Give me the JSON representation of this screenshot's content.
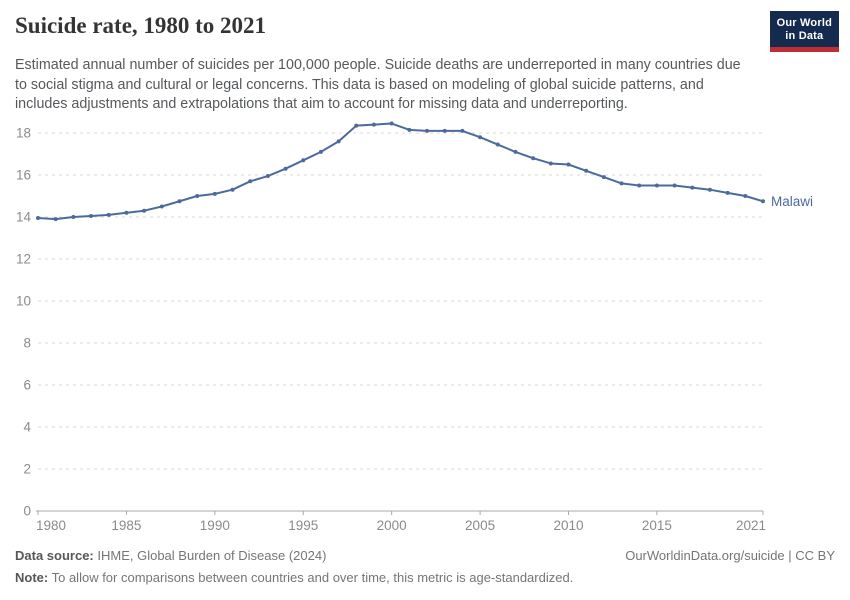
{
  "header": {
    "title": "Suicide rate, 1980 to 2021",
    "subtitle": "Estimated annual number of suicides per 100,000 people. Suicide deaths are underreported in many countries due to social stigma and cultural or legal concerns. This data is based on modeling of global suicide patterns, and includes adjustments and extrapolations that aim to account for missing data and underreporting.",
    "logo": {
      "line1": "Our World",
      "line2": "in Data"
    }
  },
  "chart_data": {
    "type": "line",
    "title": "Suicide rate, 1980 to 2021",
    "entity": "Malawi",
    "x": [
      1980,
      1981,
      1982,
      1983,
      1984,
      1985,
      1986,
      1987,
      1988,
      1989,
      1990,
      1991,
      1992,
      1993,
      1994,
      1995,
      1996,
      1997,
      1998,
      1999,
      2000,
      2001,
      2002,
      2003,
      2004,
      2005,
      2006,
      2007,
      2008,
      2009,
      2010,
      2011,
      2012,
      2013,
      2014,
      2015,
      2016,
      2017,
      2018,
      2019,
      2020,
      2021
    ],
    "series": [
      {
        "name": "Malawi",
        "values": [
          13.95,
          13.9,
          14.0,
          14.05,
          14.1,
          14.2,
          14.3,
          14.5,
          14.75,
          15.0,
          15.1,
          15.3,
          15.7,
          15.95,
          16.3,
          16.7,
          17.1,
          17.6,
          18.35,
          18.4,
          18.45,
          18.15,
          18.1,
          18.1,
          18.1,
          17.8,
          17.45,
          17.1,
          16.8,
          16.55,
          16.5,
          16.2,
          15.9,
          15.6,
          15.5,
          15.5,
          15.5,
          15.4,
          15.3,
          15.15,
          15.0,
          14.75
        ]
      }
    ],
    "xlim": [
      1980,
      2021
    ],
    "ylim": [
      0,
      18.6
    ],
    "xticks": [
      1980,
      1985,
      1990,
      1995,
      2000,
      2005,
      2010,
      2015,
      2021
    ],
    "yticks": [
      0,
      2,
      4,
      6,
      8,
      10,
      12,
      14,
      16,
      18
    ],
    "grid": "horizontal-dashed",
    "line_color": "#4c6a9c",
    "axis_color": "#a8a8a8",
    "grid_color": "#d8d8d8",
    "tick_label_color": "#8b8b8b"
  },
  "footer": {
    "data_source_label": "Data source:",
    "data_source": "IHME, Global Burden of Disease (2024)",
    "citation": "OurWorldinData.org/suicide | CC BY",
    "note_label": "Note:",
    "note": "To allow for comparisons between countries and over time, this metric is age-standardized."
  }
}
